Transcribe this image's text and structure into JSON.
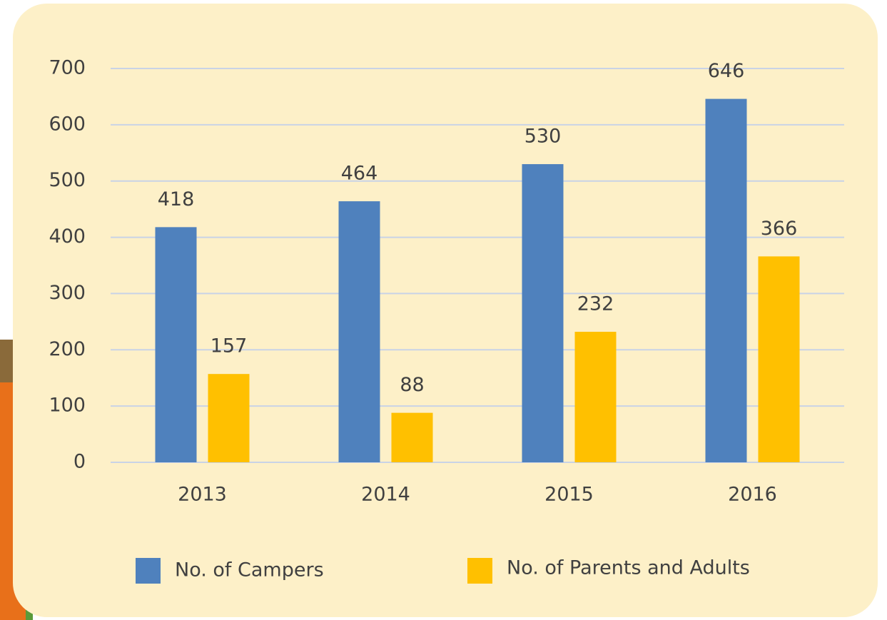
{
  "chart_data": {
    "type": "bar",
    "categories": [
      "2013",
      "2014",
      "2015",
      "2016"
    ],
    "series": [
      {
        "name": "No. of Campers",
        "color": "#4f81bd",
        "values": [
          418,
          464,
          530,
          646
        ]
      },
      {
        "name": "No. of Parents and Adults",
        "color": "#ffc000",
        "values": [
          157,
          88,
          232,
          366
        ]
      }
    ],
    "ylim": [
      0,
      700
    ],
    "yticks": [
      0,
      100,
      200,
      300,
      400,
      500,
      600,
      700
    ],
    "grid": true,
    "legend": "bottom"
  }
}
